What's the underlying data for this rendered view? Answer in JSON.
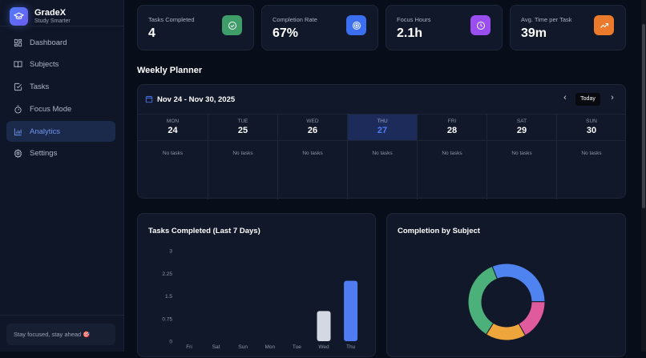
{
  "brand": {
    "name": "GradeX",
    "tagline": "Study Smarter"
  },
  "sidebar": {
    "items": [
      {
        "label": "Dashboard",
        "icon": "dashboard-icon"
      },
      {
        "label": "Subjects",
        "icon": "book-icon"
      },
      {
        "label": "Tasks",
        "icon": "checkbox-icon"
      },
      {
        "label": "Focus Mode",
        "icon": "stopwatch-icon"
      },
      {
        "label": "Analytics",
        "icon": "bar-chart-icon",
        "active": true
      },
      {
        "label": "Settings",
        "icon": "gear-icon"
      }
    ],
    "footer": "Stay focused, stay ahead 🎯"
  },
  "stats": [
    {
      "label": "Tasks Completed",
      "value": "4",
      "icon": "check-circle-icon",
      "color": "#3f9d6a"
    },
    {
      "label": "Completion Rate",
      "value": "67%",
      "icon": "target-icon",
      "color": "#3b6ff0"
    },
    {
      "label": "Focus Hours",
      "value": "2.1h",
      "icon": "clock-icon",
      "color": "#9a4ef0"
    },
    {
      "label": "Avg. Time per Task",
      "value": "39m",
      "icon": "trending-up-icon",
      "color": "#ec7a2c"
    }
  ],
  "planner": {
    "title": "Weekly Planner",
    "range": "Nov 24 - Nov 30, 2025",
    "today_label": "Today",
    "days": [
      {
        "name": "MON",
        "num": "24",
        "text": "No tasks"
      },
      {
        "name": "TUE",
        "num": "25",
        "text": "No tasks"
      },
      {
        "name": "WED",
        "num": "26",
        "text": "No tasks"
      },
      {
        "name": "THU",
        "num": "27",
        "text": "No tasks",
        "today": true
      },
      {
        "name": "FRI",
        "num": "28",
        "text": "No tasks"
      },
      {
        "name": "SAT",
        "num": "29",
        "text": "No tasks"
      },
      {
        "name": "SUN",
        "num": "30",
        "text": "No tasks"
      }
    ]
  },
  "chart_data": [
    {
      "type": "bar",
      "title": "Tasks Completed (Last 7 Days)",
      "categories": [
        "Fri",
        "Sat",
        "Sun",
        "Mon",
        "Tue",
        "Wed",
        "Thu"
      ],
      "values": [
        0,
        0,
        0,
        0,
        0,
        1,
        2
      ],
      "ylim": [
        0,
        3
      ],
      "yticks": [
        "0",
        "0.75",
        "1.5",
        "2.25",
        "3"
      ],
      "colors": [
        "#d3d8e2",
        "#4f7cf0"
      ],
      "grid": false
    },
    {
      "type": "pie",
      "title": "Completion by Subject",
      "donut": true,
      "values": [
        31,
        17,
        17,
        35
      ],
      "colors": [
        "#4f83f0",
        "#e05a9e",
        "#eea63c",
        "#4bb07a"
      ]
    }
  ]
}
